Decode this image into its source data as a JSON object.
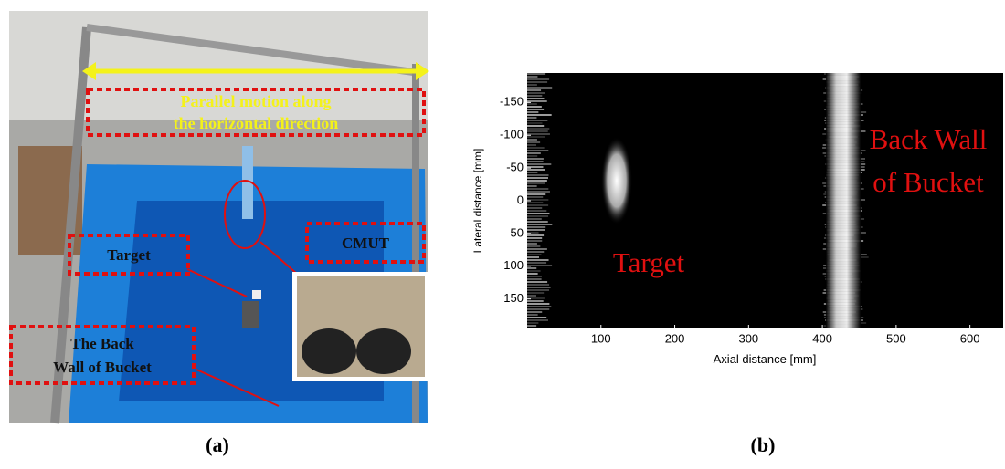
{
  "panel_a": {
    "caption": "(a)",
    "labels": {
      "motion": [
        "Parallel motion along",
        "the horizontal direction"
      ],
      "target": "Target",
      "cmut": "CMUT",
      "back_wall": [
        "The Back",
        "Wall of Bucket"
      ]
    }
  },
  "panel_b": {
    "caption": "(b)",
    "xlabel": "Axial distance [mm]",
    "ylabel": "Lateral distance [mm]",
    "xlim": [
      0,
      645
    ],
    "ylim": [
      -195,
      195
    ],
    "xticks": [
      100,
      200,
      300,
      400,
      500,
      600
    ],
    "yticks": [
      -150,
      -100,
      -50,
      0,
      50,
      100,
      150
    ],
    "annotations": {
      "back_wall": [
        "Back Wall",
        "of Bucket"
      ],
      "target": "Target"
    }
  }
}
